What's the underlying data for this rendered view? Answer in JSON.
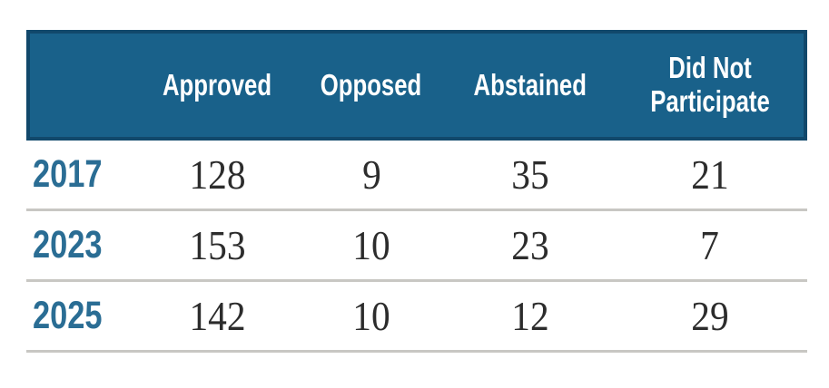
{
  "table": {
    "headers": {
      "year": "",
      "approved": "Approved",
      "opposed": "Opposed",
      "abstained": "Abstained",
      "did_not_participate": "Did Not Participate"
    },
    "rows": [
      {
        "year": "2017",
        "values": [
          "128",
          "9",
          "35",
          "21"
        ]
      },
      {
        "year": "2023",
        "values": [
          "153",
          "10",
          "23",
          "7"
        ]
      },
      {
        "year": "2025",
        "values": [
          "142",
          "10",
          "12",
          "29"
        ]
      }
    ]
  },
  "colors": {
    "header_background": "#19618a",
    "header_edge": "#11486b",
    "header_text": "#ffffff",
    "year_text": "#2a6d94",
    "value_text": "#2c2c2c",
    "divider": "#c8c7c3",
    "page_background": "#ffffff"
  },
  "chart_data": {
    "type": "table",
    "categories": [
      "2017",
      "2023",
      "2025"
    ],
    "series": [
      {
        "name": "Approved",
        "values": [
          128,
          153,
          142
        ]
      },
      {
        "name": "Opposed",
        "values": [
          9,
          10,
          10
        ]
      },
      {
        "name": "Abstained",
        "values": [
          35,
          23,
          12
        ]
      },
      {
        "name": "Did Not Participate",
        "values": [
          21,
          7,
          29
        ]
      }
    ],
    "title": "",
    "layout": {
      "header_position": "top",
      "row_labels": "years",
      "grid": "horizontal-dividers"
    }
  }
}
